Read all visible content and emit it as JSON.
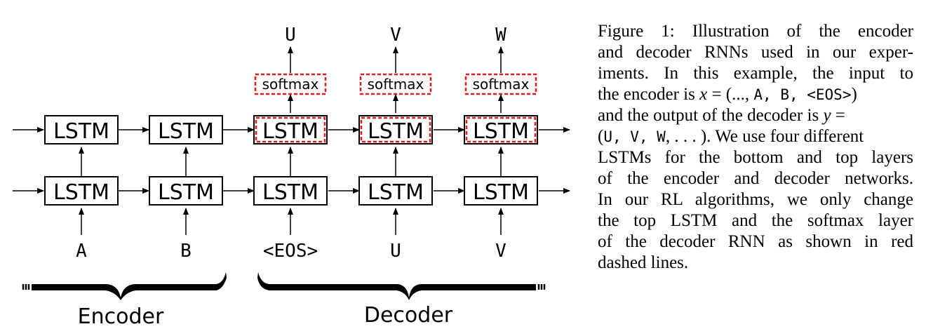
{
  "diagram": {
    "cell_label": "LSTM",
    "softmax_label": "softmax",
    "outputs": [
      "U",
      "V",
      "W"
    ],
    "inputs": [
      "A",
      "B",
      "<EOS>",
      "U",
      "V"
    ],
    "encoder_label": "Encoder",
    "decoder_label": "Decoder",
    "highlight_color": "#e41a1c"
  },
  "caption": {
    "line1": "Figure 1: Illustration of the encoder",
    "line2": "and decoder RNNs used in our exper-",
    "line3": "iments. In this example, the input to",
    "line4_a": "the encoder is ",
    "line4_var": "x",
    "line4_b": " = (..., ",
    "line4_seq": "A, B, <EOS>",
    "line4_c": ")",
    "line5_a": "and the output of the decoder is ",
    "line5_var": "y",
    "line5_b": " =",
    "line6_a": "(",
    "line6_seq": "U, V, W",
    "line6_b": ", . . . ).  We use four different",
    "line7": "LSTMs for the bottom and top layers",
    "line8": "of the encoder and decoder networks.",
    "line9": "In our RL algorithms, we only change",
    "line10": "the top LSTM and the softmax layer",
    "line11": "of the decoder RNN as shown in red",
    "line12": "dashed lines."
  }
}
